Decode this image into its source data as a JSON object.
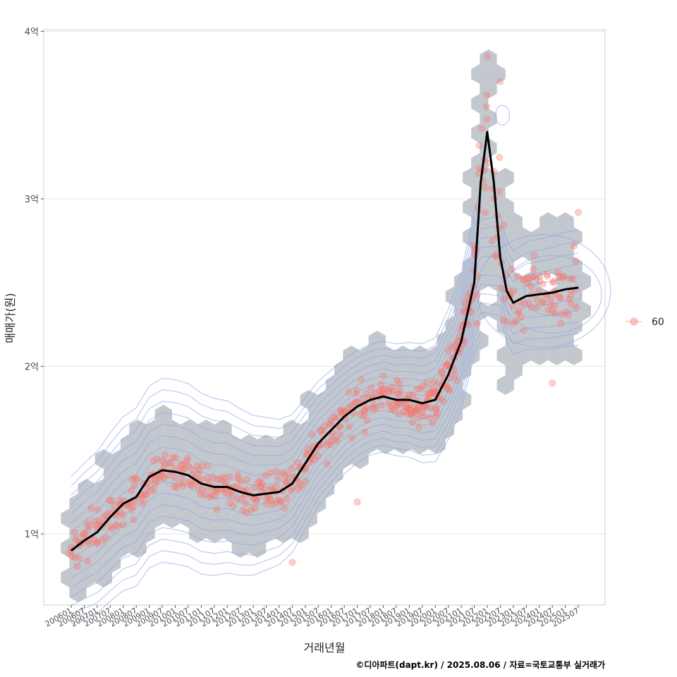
{
  "chart_data": {
    "type": "scatter",
    "xlabel": "거래년월",
    "ylabel": "매매가(원)",
    "caption": "©디아파트(dapt.kr) / 2025.08.06 / 자료=국토교통부 실거래가",
    "y_ticks": [
      {
        "value": 1,
        "label": "1억"
      },
      {
        "value": 2,
        "label": "2억"
      },
      {
        "value": 3,
        "label": "3억"
      },
      {
        "value": 4,
        "label": "4억"
      }
    ],
    "ylim": [
      0.6,
      4.05
    ],
    "x_ticks": [
      "200601",
      "200607",
      "200701",
      "200707",
      "200801",
      "200807",
      "200901",
      "200907",
      "201001",
      "201007",
      "201101",
      "201107",
      "201201",
      "201207",
      "201301",
      "201307",
      "201401",
      "201407",
      "201501",
      "201507",
      "201601",
      "201607",
      "201701",
      "201707",
      "201801",
      "201807",
      "201901",
      "201907",
      "202001",
      "202007",
      "202101",
      "202107",
      "202201",
      "202207",
      "202301",
      "202307",
      "202401",
      "202407",
      "202501",
      "202507"
    ],
    "legend": [
      {
        "label": "60",
        "color": "#f8766d"
      }
    ],
    "colors": {
      "points": "#f8766d",
      "hex": "#b9bec6",
      "contour": "#8aa0e6",
      "trend": "#000000",
      "grid": "#e5e5e5"
    },
    "trend": {
      "name": "moving average",
      "x": [
        "2006-01",
        "2006-07",
        "2007-01",
        "2007-07",
        "2008-01",
        "2008-07",
        "2009-01",
        "2009-07",
        "2010-01",
        "2010-07",
        "2011-01",
        "2011-07",
        "2012-01",
        "2012-07",
        "2013-01",
        "2013-07",
        "2014-01",
        "2014-07",
        "2015-01",
        "2015-07",
        "2016-01",
        "2016-07",
        "2017-01",
        "2017-07",
        "2018-01",
        "2018-07",
        "2019-01",
        "2019-07",
        "2020-01",
        "2020-07",
        "2021-01",
        "2021-07",
        "2021-10",
        "2022-01",
        "2022-04",
        "2022-07",
        "2022-10",
        "2023-01",
        "2023-04",
        "2023-07",
        "2024-01",
        "2024-07",
        "2025-01",
        "2025-07"
      ],
      "y": [
        0.9,
        0.96,
        1.01,
        1.1,
        1.18,
        1.22,
        1.34,
        1.38,
        1.37,
        1.35,
        1.3,
        1.28,
        1.28,
        1.25,
        1.23,
        1.24,
        1.25,
        1.3,
        1.42,
        1.54,
        1.62,
        1.7,
        1.76,
        1.8,
        1.82,
        1.8,
        1.8,
        1.78,
        1.8,
        1.95,
        2.15,
        2.5,
        3.1,
        3.4,
        3.1,
        2.65,
        2.45,
        2.38,
        2.4,
        2.42,
        2.43,
        2.44,
        2.46,
        2.47
      ]
    },
    "outliers": [
      {
        "x": "2014-07",
        "y": 0.83
      },
      {
        "x": "2017-01",
        "y": 1.19
      },
      {
        "x": "2022-01",
        "y": 3.85
      },
      {
        "x": "2022-07",
        "y": 3.7
      },
      {
        "x": "2025-07",
        "y": 2.92
      },
      {
        "x": "2024-07",
        "y": 1.9
      }
    ]
  }
}
